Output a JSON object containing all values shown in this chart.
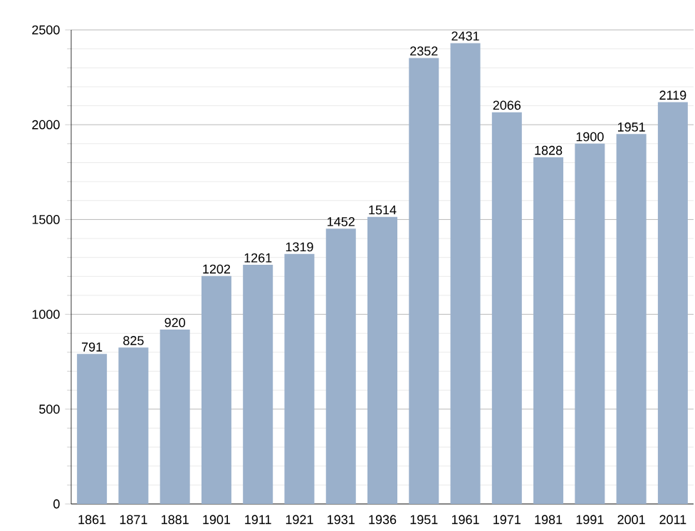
{
  "chart_data": {
    "type": "bar",
    "categories": [
      "1861",
      "1871",
      "1881",
      "1901",
      "1911",
      "1921",
      "1931",
      "1936",
      "1951",
      "1961",
      "1971",
      "1981",
      "1991",
      "2001",
      "2011"
    ],
    "values": [
      791,
      825,
      920,
      1202,
      1261,
      1319,
      1452,
      1514,
      2352,
      2431,
      2066,
      1828,
      1900,
      1951,
      2119
    ],
    "color": "#9ab0cb",
    "ylim": [
      0,
      2500
    ],
    "yticks": [
      0,
      500,
      1000,
      1500,
      2000,
      2500
    ],
    "grid": "y",
    "data_labels": true
  }
}
